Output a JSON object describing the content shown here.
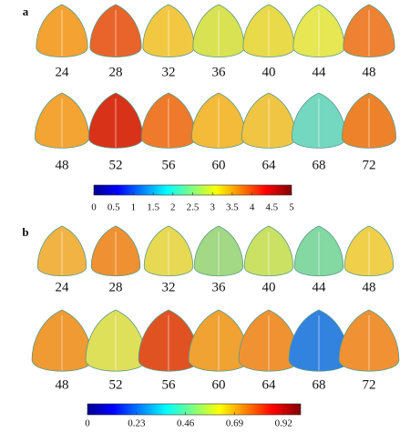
{
  "panels": [
    {
      "label": "a",
      "rows": [
        [
          {
            "label": 24,
            "color": "#f4a332"
          },
          {
            "label": 28,
            "color": "#e8642a"
          },
          {
            "label": 32,
            "color": "#f2c842"
          },
          {
            "label": 36,
            "color": "#d9e252"
          },
          {
            "label": 40,
            "color": "#e9da4a"
          },
          {
            "label": 44,
            "color": "#e6e752"
          },
          {
            "label": 48,
            "color": "#ee8232"
          }
        ],
        [
          {
            "label": 48,
            "color": "#f3a433"
          },
          {
            "label": 52,
            "color": "#d83219"
          },
          {
            "label": 56,
            "color": "#ef7a2b"
          },
          {
            "label": 60,
            "color": "#f4ba3a"
          },
          {
            "label": 64,
            "color": "#f1c544"
          },
          {
            "label": 68,
            "color": "#74d8c0"
          },
          {
            "label": 72,
            "color": "#ee822b"
          }
        ]
      ],
      "colorbar": {
        "lim": [
          0,
          5
        ],
        "ticks": [
          0,
          0.5,
          1,
          1.5,
          2,
          2.5,
          3,
          3.5,
          4,
          4.5,
          5
        ]
      }
    },
    {
      "label": "b",
      "rows": [
        [
          {
            "label": 24,
            "color": "#f1b444"
          },
          {
            "label": 28,
            "color": "#ef9132"
          },
          {
            "label": 32,
            "color": "#e8d954"
          },
          {
            "label": 36,
            "color": "#a3d884"
          },
          {
            "label": 40,
            "color": "#cbe164"
          },
          {
            "label": 44,
            "color": "#84d8a2"
          },
          {
            "label": 48,
            "color": "#f0d04a"
          }
        ],
        [
          {
            "label": 48,
            "color": "#f09a33"
          },
          {
            "label": 52,
            "color": "#dfe05a"
          },
          {
            "label": 56,
            "color": "#e05222"
          },
          {
            "label": 60,
            "color": "#f0a233"
          },
          {
            "label": 64,
            "color": "#f09232"
          },
          {
            "label": 68,
            "color": "#3282e0"
          },
          {
            "label": 72,
            "color": "#f09234"
          }
        ]
      ],
      "colorbar": {
        "lim": [
          0,
          1
        ],
        "ticks": [
          0,
          0.23,
          0.46,
          0.69,
          0.92
        ]
      }
    }
  ]
}
